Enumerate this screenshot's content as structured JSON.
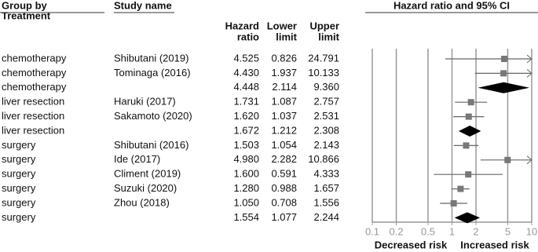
{
  "chart_data": {
    "type": "forest",
    "title": "Hazard ratio and 95% CI",
    "headers": {
      "group": "Group by",
      "group_sub": "Treatment",
      "study": "Study name",
      "hr": [
        "Hazard",
        "ratio"
      ],
      "lower": [
        "Lower",
        "limit"
      ],
      "upper": [
        "Upper",
        "limit"
      ]
    },
    "rows": [
      {
        "group": "chemotherapy",
        "study": "Shibutani (2019)",
        "values": [
          4.525,
          0.826,
          24.791
        ],
        "value_labels": [
          "4.525",
          "0.826",
          "24.791"
        ],
        "summary": false
      },
      {
        "group": "chemotherapy",
        "study": "Tominaga (2016)",
        "values": [
          4.43,
          1.937,
          10.133
        ],
        "value_labels": [
          "4.430",
          "1.937",
          "10.133"
        ],
        "summary": false
      },
      {
        "group": "chemotherapy",
        "values": [
          4.448,
          2.114,
          9.36
        ],
        "value_labels": [
          "4.448",
          "2.114",
          "9.360"
        ],
        "summary": true
      },
      {
        "group": "liver resection",
        "study": "Haruki (2017)",
        "values": [
          1.731,
          1.087,
          2.757
        ],
        "value_labels": [
          "1.731",
          "1.087",
          "2.757"
        ],
        "summary": false
      },
      {
        "group": "liver resection",
        "study": "Sakamoto (2020)",
        "values": [
          1.62,
          1.037,
          2.531
        ],
        "value_labels": [
          "1.620",
          "1.037",
          "2.531"
        ],
        "summary": false
      },
      {
        "group": "liver resection",
        "values": [
          1.672,
          1.212,
          2.308
        ],
        "value_labels": [
          "1.672",
          "1.212",
          "2.308"
        ],
        "summary": true
      },
      {
        "group": "surgery",
        "study": "Shibutani (2016)",
        "values": [
          1.503,
          1.054,
          2.143
        ],
        "value_labels": [
          "1.503",
          "1.054",
          "2.143"
        ],
        "summary": false
      },
      {
        "group": "surgery",
        "study": "Ide (2017)",
        "values": [
          4.98,
          2.282,
          10.866
        ],
        "value_labels": [
          "4.980",
          "2.282",
          "10.866"
        ],
        "summary": false
      },
      {
        "group": "surgery",
        "study": "Climent (2019)",
        "values": [
          1.6,
          0.591,
          4.333
        ],
        "value_labels": [
          "1.600",
          "0.591",
          "4.333"
        ],
        "summary": false
      },
      {
        "group": "surgery",
        "study": "Suzuki (2020)",
        "values": [
          1.28,
          0.988,
          1.657
        ],
        "value_labels": [
          "1.280",
          "0.988",
          "1.657"
        ],
        "summary": false
      },
      {
        "group": "surgery",
        "study": "Zhou (2018)",
        "values": [
          1.05,
          0.708,
          1.556
        ],
        "value_labels": [
          "1.050",
          "0.708",
          "1.556"
        ],
        "summary": false
      },
      {
        "group": "surgery",
        "values": [
          1.554,
          1.077,
          2.244
        ],
        "value_labels": [
          "1.554",
          "1.077",
          "2.244"
        ],
        "summary": true
      }
    ],
    "xlim": [
      0.1,
      10
    ],
    "xticks": [
      0.1,
      0.2,
      0.5,
      1,
      2,
      5,
      10
    ],
    "log_x": true,
    "x_notes": {
      "left": "Decreased risk",
      "right": "Increased risk"
    },
    "marker_color": "#777777",
    "summary_color": "#000000",
    "line_color": "#666666"
  }
}
